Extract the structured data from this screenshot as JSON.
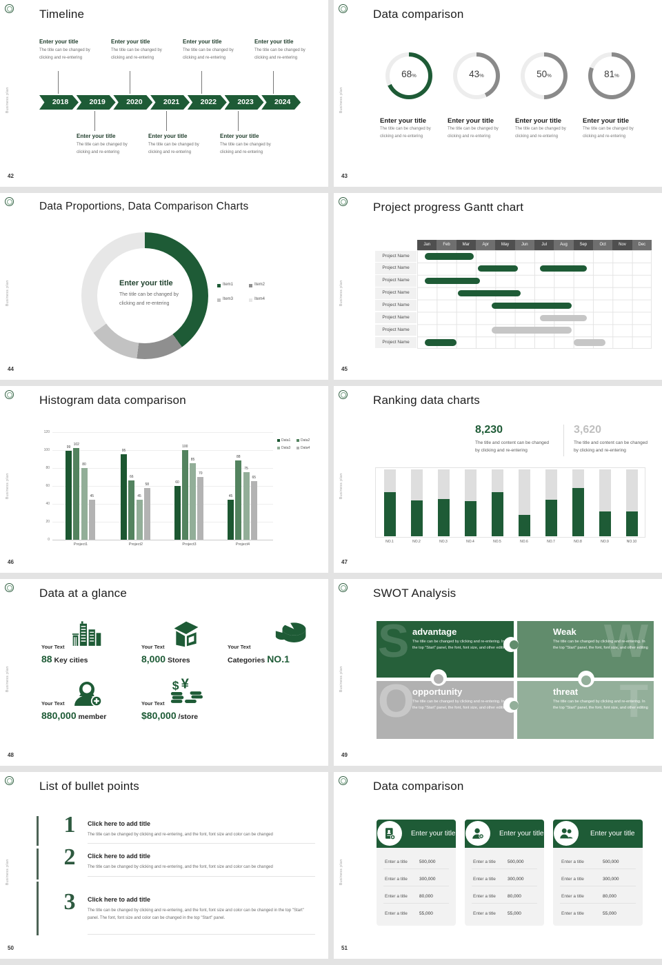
{
  "page": {
    "vertical_label": "Business plan",
    "background": "#e3e3e3"
  },
  "colors": {
    "green": "#1e5b36",
    "ring_track": "#ededed",
    "ring_gray": "#8a8a8a",
    "gantt_bar_gray": "#c6c6c6",
    "hist_series": [
      "#1c5731",
      "#53835f",
      "#92ae98",
      "#b3b3b3"
    ],
    "rank_track": "#dedede",
    "swot": [
      "#26603a",
      "#618c6c",
      "#b1b1b1",
      "#93af9a"
    ]
  },
  "slides": {
    "timeline": {
      "number": "42",
      "title": "Timeline",
      "entry_title": "Enter your title",
      "entry_desc_lines": [
        "The title can be changed by",
        "clicking and re-entering"
      ],
      "years": [
        "2018",
        "2019",
        "2020",
        "2021",
        "2022",
        "2023",
        "2024"
      ],
      "top_entry_years": [
        "2018",
        "2020",
        "2022",
        "2024"
      ],
      "bottom_entry_years": [
        "2019",
        "2021",
        "2023"
      ]
    },
    "donut_compare": {
      "number": "43",
      "title": "Data comparison",
      "entry_title": "Enter your title",
      "entry_desc_lines": [
        "The title can be changed by",
        "clicking and re-entering"
      ],
      "items": [
        {
          "percent": 68,
          "accent": "#1e5b36"
        },
        {
          "percent": 43,
          "accent": "#8a8a8a"
        },
        {
          "percent": 50,
          "accent": "#8a8a8a"
        },
        {
          "percent": 81,
          "accent": "#8a8a8a"
        }
      ]
    },
    "proportions": {
      "number": "44",
      "title": "Data Proportions, Data Comparison Charts",
      "center_title": "Enter your title",
      "center_desc_lines": [
        "The title can be changed by",
        "clicking and re-entering"
      ],
      "chart_data": {
        "type": "pie",
        "segments": [
          {
            "label": "Item1",
            "value": 40,
            "color": "#1e5b36"
          },
          {
            "label": "Item2",
            "value": 12,
            "color": "#8f8f8f"
          },
          {
            "label": "Item3",
            "value": 13,
            "color": "#c2c2c2"
          },
          {
            "label": "Item4",
            "value": 35,
            "color": "#e7e7e7"
          }
        ]
      }
    },
    "gantt": {
      "number": "45",
      "title": "Project progress Gantt chart",
      "months": [
        "Jan",
        "Feb",
        "Mar",
        "Apr",
        "May",
        "Jun",
        "Jul",
        "Aug",
        "Sep",
        "Oct",
        "Nov",
        "Dec"
      ],
      "row_label": "Project Name",
      "rows": [
        {
          "bars": [
            {
              "start": 0.4,
              "end": 2.9,
              "color": "green"
            }
          ]
        },
        {
          "bars": [
            {
              "start": 3.1,
              "end": 5.15,
              "color": "green"
            },
            {
              "start": 6.3,
              "end": 8.7,
              "color": "green"
            }
          ]
        },
        {
          "bars": [
            {
              "start": 0.4,
              "end": 3.2,
              "color": "green"
            }
          ]
        },
        {
          "bars": [
            {
              "start": 2.1,
              "end": 5.3,
              "color": "green"
            }
          ]
        },
        {
          "bars": [
            {
              "start": 3.8,
              "end": 7.9,
              "color": "green"
            }
          ]
        },
        {
          "bars": [
            {
              "start": 6.3,
              "end": 8.7,
              "color": "gray"
            }
          ]
        },
        {
          "bars": [
            {
              "start": 3.8,
              "end": 7.9,
              "color": "gray"
            }
          ]
        },
        {
          "bars": [
            {
              "start": 0.4,
              "end": 2.0,
              "color": "green"
            },
            {
              "start": 8.0,
              "end": 9.65,
              "color": "gray"
            }
          ]
        }
      ]
    },
    "histogram": {
      "number": "46",
      "title": "Histogram data comparison",
      "chart_data": {
        "type": "bar",
        "categories": [
          "Project1",
          "Project2",
          "Project3",
          "Project4"
        ],
        "series": [
          {
            "name": "Data1",
            "color": "#1c5731",
            "values": [
              99,
              95,
              60,
              45
            ]
          },
          {
            "name": "Data2",
            "color": "#53835f",
            "values": [
              102,
              66,
              100,
              88
            ]
          },
          {
            "name": "Data3",
            "color": "#92ae98",
            "values": [
              80,
              45,
              85,
              75
            ]
          },
          {
            "name": "Data4",
            "color": "#b3b3b3",
            "values": [
              45,
              58,
              70,
              65
            ]
          }
        ],
        "y_ticks": [
          0,
          20,
          40,
          60,
          80,
          100,
          120
        ],
        "ylim": [
          0,
          120
        ],
        "grid": true,
        "legend_position": "top-right"
      }
    },
    "ranking": {
      "number": "47",
      "title": "Ranking data charts",
      "stat1": {
        "value": "8,230",
        "desc_lines": [
          "The title and content can be changed",
          "by clicking and re-entering"
        ]
      },
      "stat2": {
        "value": "3,620",
        "desc_lines": [
          "The title and content can be changed",
          "by clicking and re-entering"
        ]
      },
      "chart_data": {
        "type": "bar",
        "categories": [
          "NO.1",
          "NO.2",
          "NO.3",
          "NO.4",
          "NO.5",
          "NO.6",
          "NO.7",
          "NO.8",
          "NO.9",
          "NO.10"
        ],
        "values": [
          66,
          54,
          56,
          53,
          66,
          32,
          55,
          72,
          37,
          37
        ],
        "ylim": [
          0,
          100
        ]
      }
    },
    "glance": {
      "number": "48",
      "title": "Data at a glance",
      "label": "Your Text",
      "items": [
        {
          "icon": "city-icon",
          "parts": [
            {
              "text": "88",
              "accent": true
            },
            {
              "text": " Key cities",
              "accent": false
            }
          ]
        },
        {
          "icon": "store-icon",
          "parts": [
            {
              "text": "8,000",
              "accent": true
            },
            {
              "text": " Stores",
              "accent": false
            }
          ]
        },
        {
          "icon": "pie-icon",
          "parts": [
            {
              "text": "Categories ",
              "accent": false
            },
            {
              "text": "NO.1",
              "accent": true
            }
          ]
        },
        {
          "icon": "member-add-icon",
          "parts": [
            {
              "text": "880,000",
              "accent": true
            },
            {
              "text": " member",
              "accent": false
            }
          ]
        },
        {
          "icon": "coins-icon",
          "parts": [
            {
              "text": "$80,000",
              "accent": true
            },
            {
              "text": " /store",
              "accent": false
            }
          ]
        }
      ]
    },
    "swot": {
      "number": "49",
      "title": "SWOT Analysis",
      "body": "The title can be changed by clicking and re-entering. In the top \"Start\" panel, the font, font size, and other editing",
      "quadrants": [
        {
          "letter": "S",
          "heading": "advantage",
          "color": "#26603a",
          "letter_side": "left"
        },
        {
          "letter": "W",
          "heading": "Weak",
          "color": "#618c6c",
          "letter_side": "right"
        },
        {
          "letter": "O",
          "heading": "opportunity",
          "color": "#b1b1b1",
          "letter_side": "left"
        },
        {
          "letter": "T",
          "heading": "threat",
          "color": "#93af9a",
          "letter_side": "right"
        }
      ]
    },
    "bullets": {
      "number": "50",
      "title": "List of bullet points",
      "items": [
        {
          "num": "1",
          "heading": "Click here to add title",
          "desc": "The title can be changed by clicking and re-entering, and the font, font size and color can be changed"
        },
        {
          "num": "2",
          "heading": "Click here to add title",
          "desc": "The title can be changed by clicking and re-entering, and the font, font size and color can be changed"
        },
        {
          "num": "3",
          "heading": "Click here to add title",
          "desc": "The title can be changed by clicking and re-entering, and the font, font size and color can be changed in the top \"Start\" panel. The font, font size and color can be changed in the top \"Start\" panel."
        }
      ]
    },
    "compare_cards": {
      "number": "51",
      "title": "Data comparison",
      "header": "Enter your title",
      "row_label": "Enter a title",
      "values": [
        "500,000",
        "300,000",
        "80,000",
        "55,000"
      ],
      "icons": [
        "id-card-icon",
        "person-add-icon",
        "people-icon"
      ]
    }
  }
}
